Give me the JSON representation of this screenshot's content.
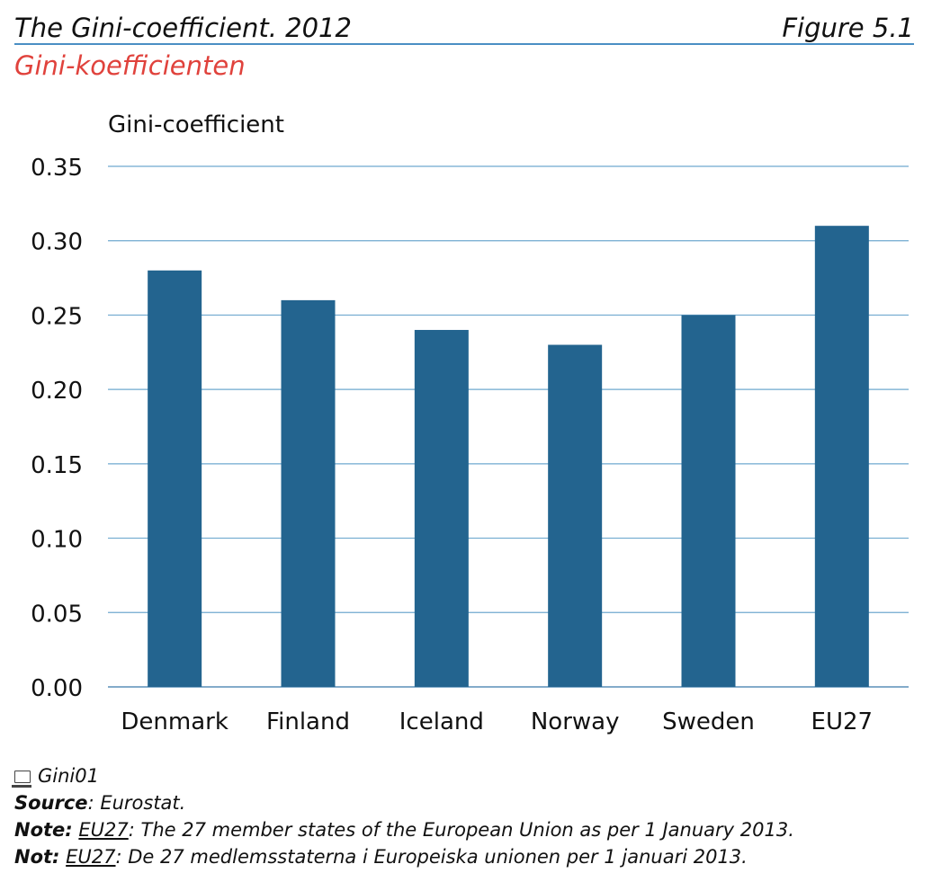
{
  "header": {
    "title": "The Gini-coefficient. 2012",
    "figure_number": "Figure 5.1",
    "subtitle": "Gini-koefficienten"
  },
  "chart_data": {
    "type": "bar",
    "ylabel": "Gini-coefficient",
    "xlabel": "",
    "categories": [
      "Denmark",
      "Finland",
      "Iceland",
      "Norway",
      "Sweden",
      "EU27"
    ],
    "values": [
      0.28,
      0.26,
      0.24,
      0.23,
      0.25,
      0.31
    ],
    "ylim": [
      0,
      0.35
    ],
    "yticks": [
      "0.00",
      "0.05",
      "0.10",
      "0.15",
      "0.20",
      "0.25",
      "0.30",
      "0.35"
    ],
    "grid": true,
    "bar_color": "#23648f",
    "grid_color": "#6fa9cf"
  },
  "footer": {
    "file_icon": "computer-icon",
    "file_name": "Gini01",
    "source_label": "Source",
    "source_text": ": Eurostat.",
    "note_label": "Note:",
    "note_term": "EU27",
    "note_text": ": The 27 member states of the European Union as per 1 January 2013.",
    "not_label": "Not:",
    "not_term": "EU27",
    "not_text": ": De 27 medlemsstaterna i Europeiska unionen per 1 januari 2013."
  }
}
